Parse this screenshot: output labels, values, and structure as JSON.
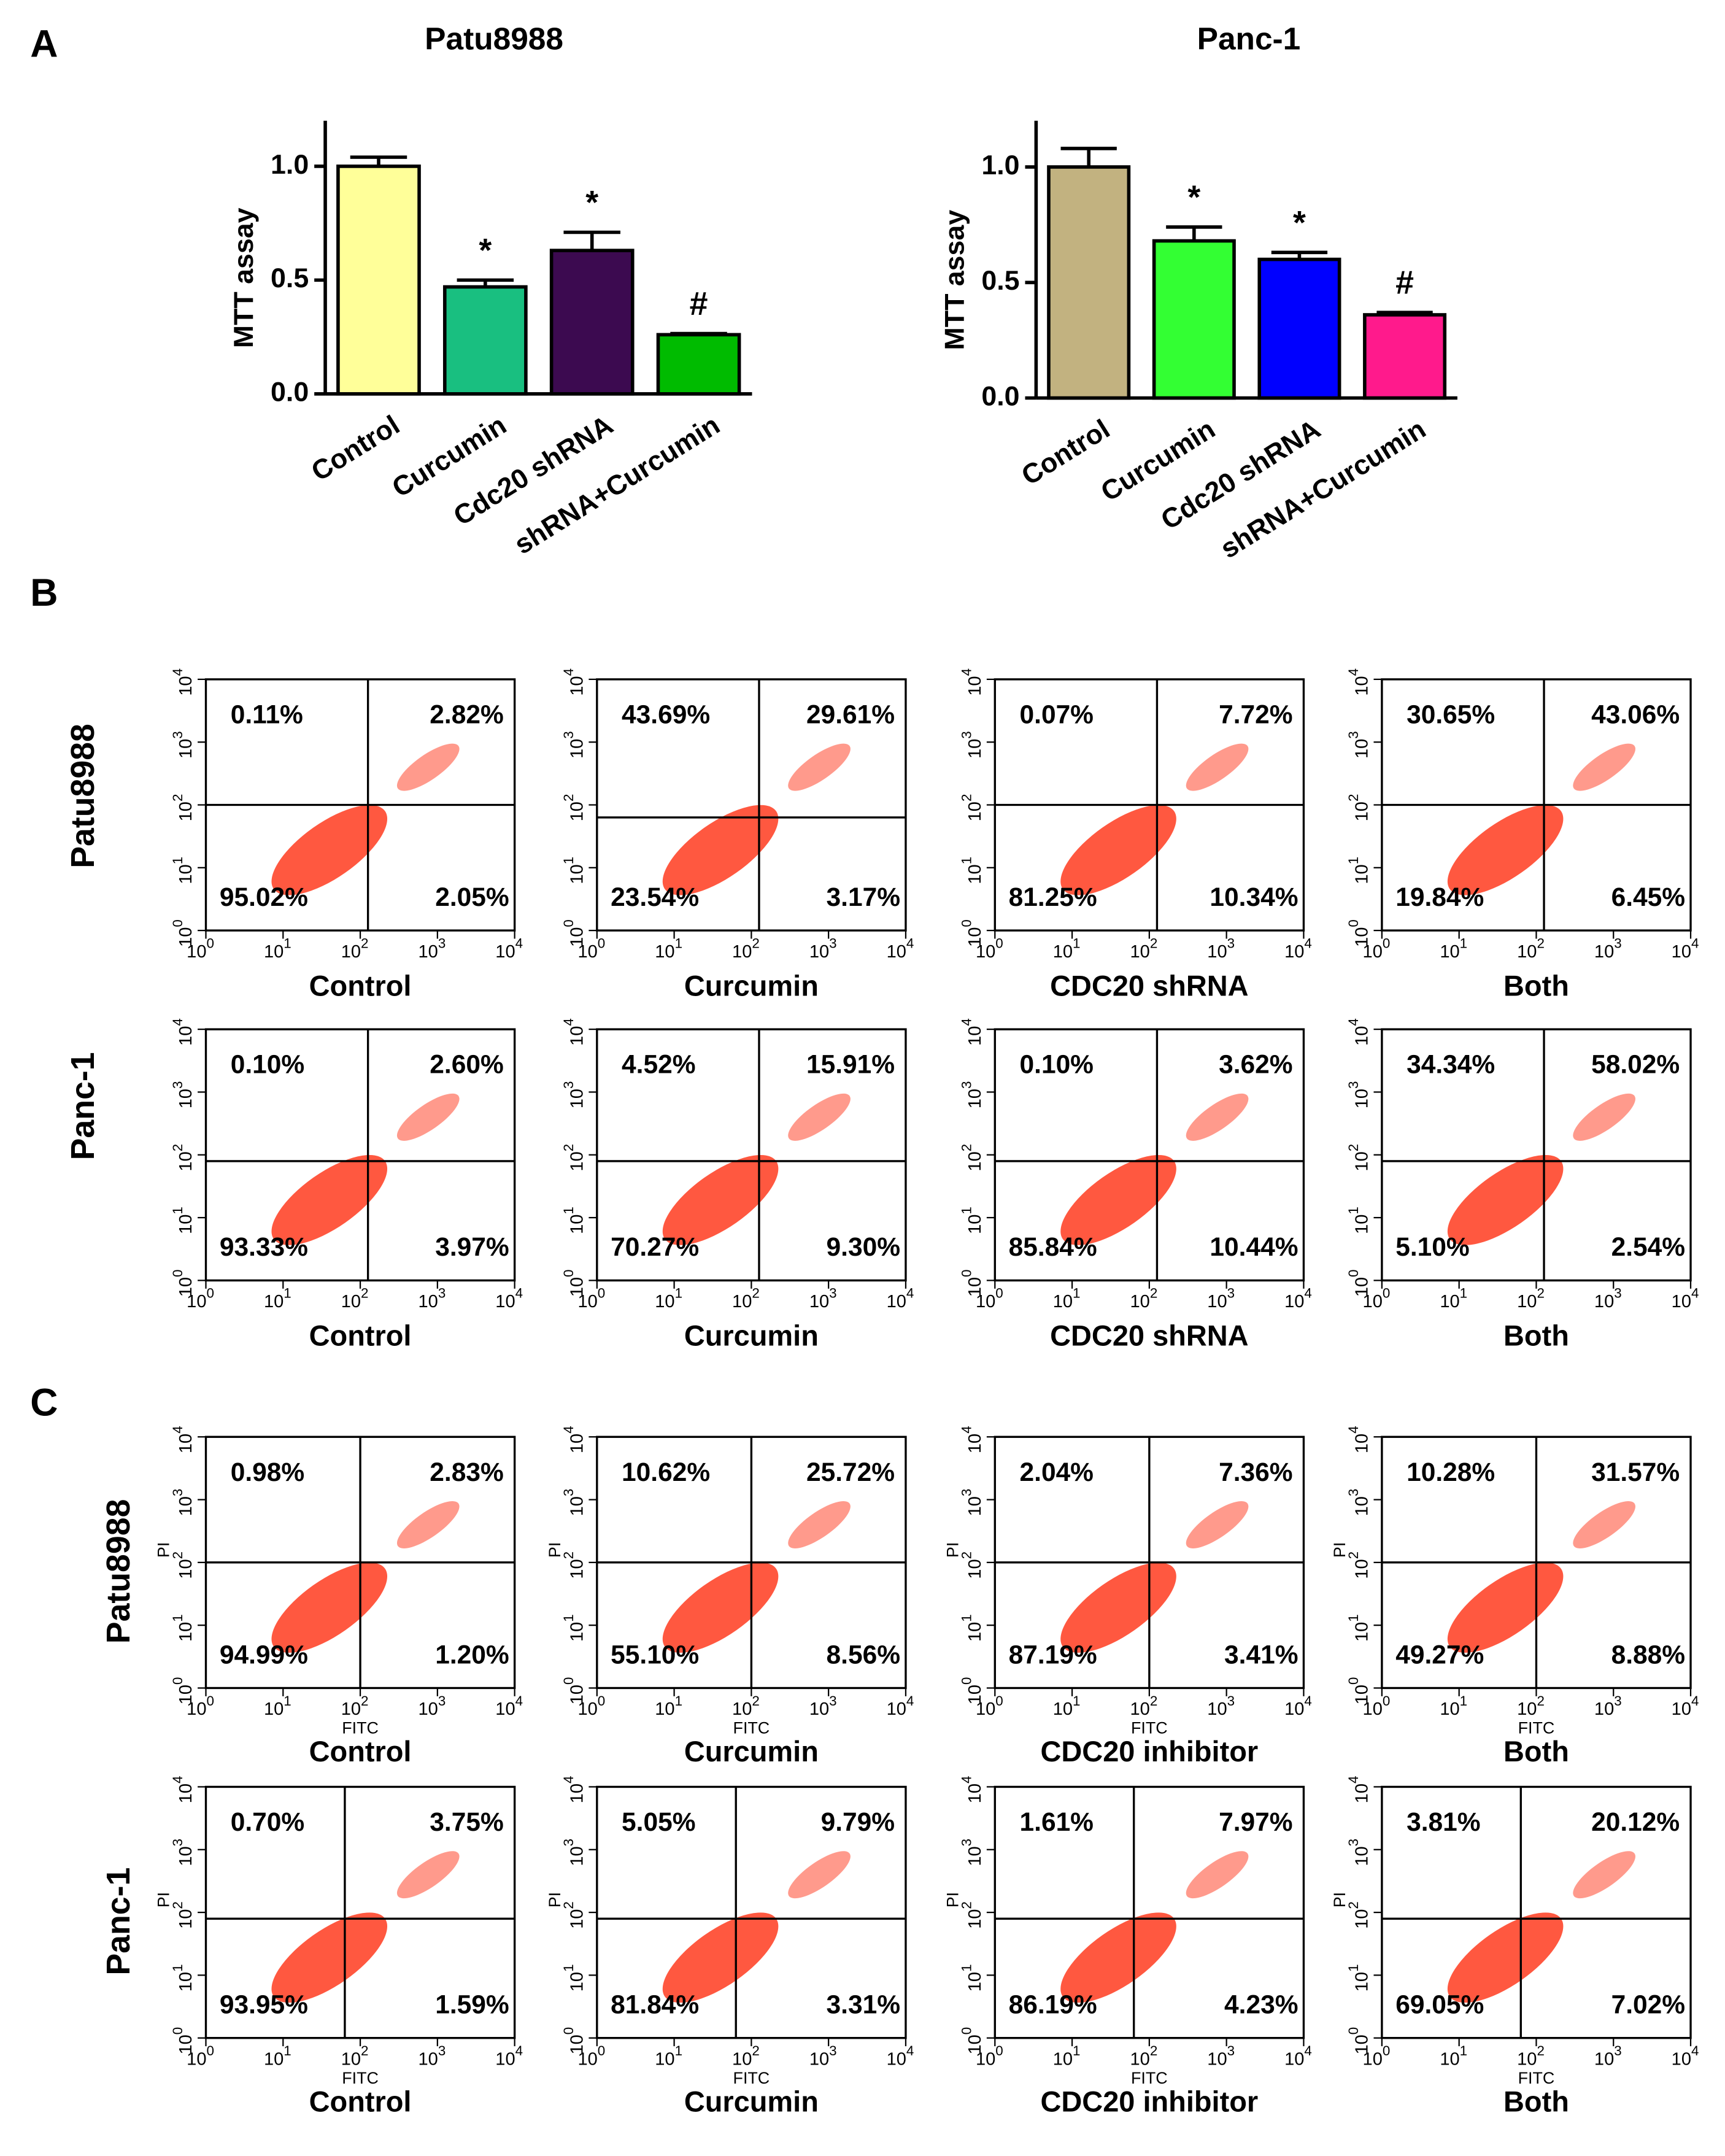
{
  "figure": {
    "panel_labels": [
      "A",
      "B",
      "C"
    ],
    "row_labels": [
      "Patu8988",
      "Panc-1",
      "Patu8988",
      "Panc-1"
    ]
  },
  "chart_data": [
    {
      "type": "bar",
      "title": "Patu8988",
      "y_label": "MTT  assay",
      "categories": [
        "Control",
        "Curcumin",
        "Cdc20 shRNA",
        "shRNA+Curcumin"
      ],
      "values": [
        1.0,
        0.47,
        0.63,
        0.26
      ],
      "errors": [
        0.04,
        0.03,
        0.08,
        0.005
      ],
      "colors": [
        "#ffff99",
        "#19bf80",
        "#3c0a50",
        "#00bb00"
      ],
      "annotations": [
        null,
        "*",
        "*",
        "#"
      ],
      "ylim": [
        0,
        1.2
      ],
      "yticks": [
        {
          "value": 0,
          "label": "0.0"
        },
        0.5,
        {
          "value": 1,
          "label": "1.0"
        }
      ]
    },
    {
      "type": "bar",
      "title": "Panc-1",
      "y_label": "MTT  assay",
      "categories": [
        "Control",
        "Curcumin",
        "Cdc20 shRNA",
        "shRNA+Curcumin"
      ],
      "values": [
        1.0,
        0.68,
        0.6,
        0.36
      ],
      "errors": [
        0.08,
        0.06,
        0.03,
        0.01
      ],
      "colors": [
        "#c2b280",
        "#33ff33",
        "#0000ff",
        "#ff1a8c"
      ],
      "annotations": [
        null,
        "*",
        "*",
        "#"
      ],
      "ylim": [
        0,
        1.2
      ],
      "yticks": [
        {
          "value": 0,
          "label": "0.0"
        },
        0.5,
        {
          "value": 1,
          "label": "1.0"
        }
      ]
    },
    {
      "type": "quadrant",
      "x_label": "Control",
      "values": [
        0.11,
        2.82,
        95.02,
        2.05
      ],
      "value_labels": [
        "0.11%",
        "2.82%",
        "95.02%",
        "2.05%"
      ],
      "gate": [
        2.1,
        2.0
      ],
      "xlim": [
        0,
        4
      ],
      "ylim": [
        0,
        4
      ],
      "tick_base": "10",
      "xticks": [
        0,
        1,
        2,
        3,
        4
      ],
      "yticks": [
        0,
        1,
        2,
        3,
        4
      ]
    },
    {
      "type": "quadrant",
      "x_label": "Curcumin",
      "values": [
        43.69,
        29.61,
        23.54,
        3.17
      ],
      "value_labels": [
        "43.69%",
        "29.61%",
        "23.54%",
        "3.17%"
      ],
      "gate": [
        2.1,
        1.8
      ],
      "xlim": [
        0,
        4
      ],
      "ylim": [
        0,
        4
      ],
      "tick_base": "10",
      "xticks": [
        0,
        1,
        2,
        3,
        4
      ],
      "yticks": [
        0,
        1,
        2,
        3,
        4
      ]
    },
    {
      "type": "quadrant",
      "x_label": "CDC20  shRNA",
      "values": [
        0.07,
        7.72,
        81.25,
        10.34
      ],
      "value_labels": [
        "0.07%",
        "7.72%",
        "81.25%",
        "10.34%"
      ],
      "gate": [
        2.1,
        2.0
      ],
      "xlim": [
        0,
        4
      ],
      "ylim": [
        0,
        4
      ],
      "tick_base": "10",
      "xticks": [
        0,
        1,
        2,
        3,
        4
      ],
      "yticks": [
        0,
        1,
        2,
        3,
        4
      ]
    },
    {
      "type": "quadrant",
      "x_label": "Both",
      "values": [
        30.65,
        43.06,
        19.84,
        6.45
      ],
      "value_labels": [
        "30.65%",
        "43.06%",
        "19.84%",
        "6.45%"
      ],
      "gate": [
        2.1,
        2.0
      ],
      "xlim": [
        0,
        4
      ],
      "ylim": [
        0,
        4
      ],
      "tick_base": "10",
      "xticks": [
        0,
        1,
        2,
        3,
        4
      ],
      "yticks": [
        0,
        1,
        2,
        3,
        4
      ]
    },
    {
      "type": "quadrant",
      "x_label": "Control",
      "values": [
        0.1,
        2.6,
        93.33,
        3.97
      ],
      "value_labels": [
        "0.10%",
        "2.60%",
        "93.33%",
        "3.97%"
      ],
      "gate": [
        2.1,
        1.9
      ],
      "xlim": [
        0,
        4
      ],
      "ylim": [
        0,
        4
      ],
      "tick_base": "10",
      "xticks": [
        0,
        1,
        2,
        3,
        4
      ],
      "yticks": [
        0,
        1,
        2,
        3,
        4
      ]
    },
    {
      "type": "quadrant",
      "x_label": "Curcumin",
      "values": [
        4.52,
        15.91,
        70.27,
        9.3
      ],
      "value_labels": [
        "4.52%",
        "15.91%",
        "70.27%",
        "9.30%"
      ],
      "gate": [
        2.1,
        1.9
      ],
      "xlim": [
        0,
        4
      ],
      "ylim": [
        0,
        4
      ],
      "tick_base": "10",
      "xticks": [
        0,
        1,
        2,
        3,
        4
      ],
      "yticks": [
        0,
        1,
        2,
        3,
        4
      ]
    },
    {
      "type": "quadrant",
      "x_label": "CDC20  shRNA",
      "values": [
        0.1,
        3.62,
        85.84,
        10.44
      ],
      "value_labels": [
        "0.10%",
        "3.62%",
        "85.84%",
        "10.44%"
      ],
      "gate": [
        2.1,
        1.9
      ],
      "xlim": [
        0,
        4
      ],
      "ylim": [
        0,
        4
      ],
      "tick_base": "10",
      "xticks": [
        0,
        1,
        2,
        3,
        4
      ],
      "yticks": [
        0,
        1,
        2,
        3,
        4
      ]
    },
    {
      "type": "quadrant",
      "x_label": "Both",
      "values": [
        34.34,
        58.02,
        5.1,
        2.54
      ],
      "value_labels": [
        "34.34%",
        "58.02%",
        "5.10%",
        "2.54%"
      ],
      "gate": [
        2.1,
        1.9
      ],
      "xlim": [
        0,
        4
      ],
      "ylim": [
        0,
        4
      ],
      "tick_base": "10",
      "xticks": [
        0,
        1,
        2,
        3,
        4
      ],
      "yticks": [
        0,
        1,
        2,
        3,
        4
      ]
    },
    {
      "type": "quadrant",
      "x_label": "Control",
      "x_axis_label": "FITC",
      "y_axis_label": "PI",
      "values": [
        0.98,
        2.83,
        94.99,
        1.2
      ],
      "value_labels": [
        "0.98%",
        "2.83%",
        "94.99%",
        "1.20%"
      ],
      "gate": [
        2.0,
        2.0
      ],
      "xlim": [
        0,
        4
      ],
      "ylim": [
        0,
        4
      ],
      "tick_base": "10",
      "xticks": [
        0,
        1,
        2,
        3,
        4
      ],
      "yticks": [
        0,
        1,
        2,
        3,
        4
      ]
    },
    {
      "type": "quadrant",
      "x_label": "Curcumin",
      "x_axis_label": "FITC",
      "y_axis_label": "PI",
      "values": [
        10.62,
        25.72,
        55.1,
        8.56
      ],
      "value_labels": [
        "10.62%",
        "25.72%",
        "55.10%",
        "8.56%"
      ],
      "gate": [
        2.0,
        2.0
      ],
      "xlim": [
        0,
        4
      ],
      "ylim": [
        0,
        4
      ],
      "tick_base": "10",
      "xticks": [
        0,
        1,
        2,
        3,
        4
      ],
      "yticks": [
        0,
        1,
        2,
        3,
        4
      ]
    },
    {
      "type": "quadrant",
      "x_label": "CDC20  inhibitor",
      "x_axis_label": "FITC",
      "y_axis_label": "PI",
      "values": [
        2.04,
        7.36,
        87.19,
        3.41
      ],
      "value_labels": [
        "2.04%",
        "7.36%",
        "87.19%",
        "3.41%"
      ],
      "gate": [
        2.0,
        2.0
      ],
      "xlim": [
        0,
        4
      ],
      "ylim": [
        0,
        4
      ],
      "tick_base": "10",
      "xticks": [
        0,
        1,
        2,
        3,
        4
      ],
      "yticks": [
        0,
        1,
        2,
        3,
        4
      ]
    },
    {
      "type": "quadrant",
      "x_label": "Both",
      "x_axis_label": "FITC",
      "y_axis_label": "PI",
      "values": [
        10.28,
        31.57,
        49.27,
        8.88
      ],
      "value_labels": [
        "10.28%",
        "31.57%",
        "49.27%",
        "8.88%"
      ],
      "gate": [
        2.0,
        2.0
      ],
      "xlim": [
        0,
        4
      ],
      "ylim": [
        0,
        4
      ],
      "tick_base": "10",
      "xticks": [
        0,
        1,
        2,
        3,
        4
      ],
      "yticks": [
        0,
        1,
        2,
        3,
        4
      ]
    },
    {
      "type": "quadrant",
      "x_label": "Control",
      "x_axis_label": "FITC",
      "y_axis_label": "PI",
      "values": [
        0.7,
        3.75,
        93.95,
        1.59
      ],
      "value_labels": [
        "0.70%",
        "3.75%",
        "93.95%",
        "1.59%"
      ],
      "gate": [
        1.8,
        1.9
      ],
      "xlim": [
        0,
        4
      ],
      "ylim": [
        0,
        4
      ],
      "tick_base": "10",
      "xticks": [
        0,
        1,
        2,
        3,
        4
      ],
      "yticks": [
        0,
        1,
        2,
        3,
        4
      ]
    },
    {
      "type": "quadrant",
      "x_label": "Curcumin",
      "x_axis_label": "FITC",
      "y_axis_label": "PI",
      "values": [
        5.05,
        9.79,
        81.84,
        3.31
      ],
      "value_labels": [
        "5.05%",
        "9.79%",
        "81.84%",
        "3.31%"
      ],
      "gate": [
        1.8,
        1.9
      ],
      "xlim": [
        0,
        4
      ],
      "ylim": [
        0,
        4
      ],
      "tick_base": "10",
      "xticks": [
        0,
        1,
        2,
        3,
        4
      ],
      "yticks": [
        0,
        1,
        2,
        3,
        4
      ]
    },
    {
      "type": "quadrant",
      "x_label": "CDC20  inhibitor",
      "x_axis_label": "FITC",
      "y_axis_label": "PI",
      "values": [
        1.61,
        7.97,
        86.19,
        4.23
      ],
      "value_labels": [
        "1.61%",
        "7.97%",
        "86.19%",
        "4.23%"
      ],
      "gate": [
        1.8,
        1.9
      ],
      "xlim": [
        0,
        4
      ],
      "ylim": [
        0,
        4
      ],
      "tick_base": "10",
      "xticks": [
        0,
        1,
        2,
        3,
        4
      ],
      "yticks": [
        0,
        1,
        2,
        3,
        4
      ]
    },
    {
      "type": "quadrant",
      "x_label": "Both",
      "x_axis_label": "FITC",
      "y_axis_label": "PI",
      "values": [
        3.81,
        20.12,
        69.05,
        7.02
      ],
      "value_labels": [
        "3.81%",
        "20.12%",
        "69.05%",
        "7.02%"
      ],
      "gate": [
        1.8,
        1.9
      ],
      "xlim": [
        0,
        4
      ],
      "ylim": [
        0,
        4
      ],
      "tick_base": "10",
      "xticks": [
        0,
        1,
        2,
        3,
        4
      ],
      "yticks": [
        0,
        1,
        2,
        3,
        4
      ]
    }
  ]
}
